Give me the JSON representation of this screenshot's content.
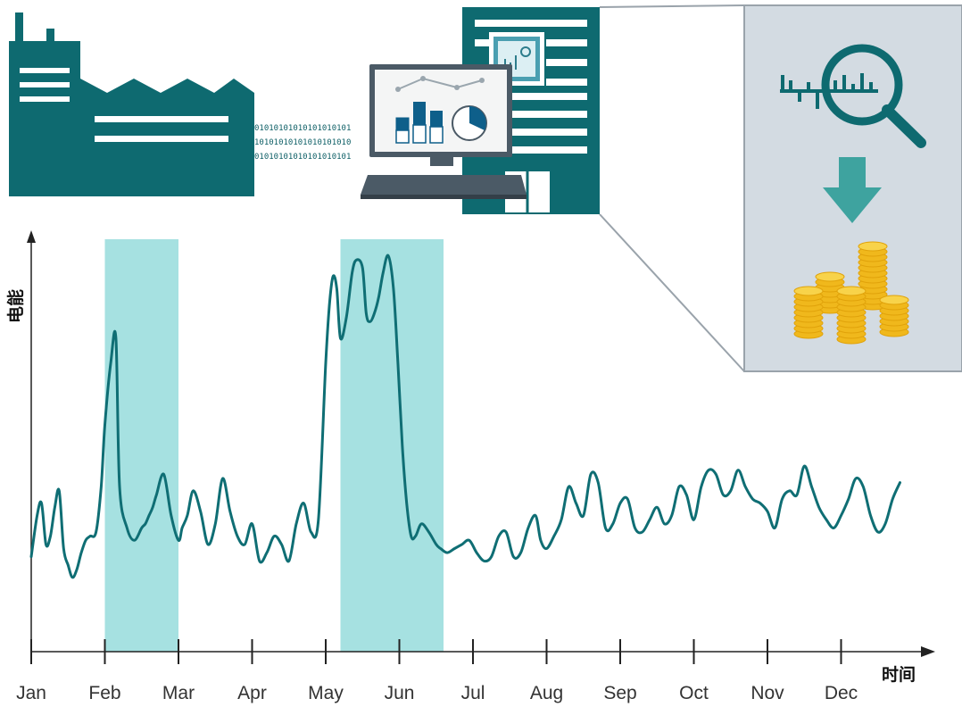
{
  "chart_data": {
    "type": "line",
    "title": "",
    "xlabel": "时间",
    "ylabel": "电能",
    "months": [
      "Jan",
      "Feb",
      "Mar",
      "Apr",
      "May",
      "Jun",
      "Jul",
      "Aug",
      "Sep",
      "Oct",
      "Nov",
      "Dec"
    ],
    "x_range": [
      0,
      12
    ],
    "ylim": [
      0,
      10
    ],
    "grid": false,
    "line_color": "#0f6e74",
    "highlight_color": "#a6e1e1",
    "highlight_ranges": [
      [
        1.0,
        2.0
      ],
      [
        4.2,
        5.6
      ]
    ],
    "series": [
      {
        "x": [
          0.0,
          0.08,
          0.14,
          0.2,
          0.26,
          0.32,
          0.38,
          0.44,
          0.5,
          0.56,
          0.62,
          0.68,
          0.74,
          0.8,
          0.88,
          0.95,
          1.0,
          1.08,
          1.15,
          1.2,
          1.3,
          1.4,
          1.5,
          1.55,
          1.6,
          1.65,
          1.7,
          1.8,
          1.9,
          2.0,
          2.05,
          2.12,
          2.2,
          2.3,
          2.4,
          2.5,
          2.6,
          2.7,
          2.8,
          2.9,
          3.0,
          3.1,
          3.2,
          3.3,
          3.4,
          3.5,
          3.6,
          3.7,
          3.8,
          3.9,
          4.0,
          4.05,
          4.1,
          4.15,
          4.2,
          4.28,
          4.36,
          4.42,
          4.5,
          4.55,
          4.6,
          4.66,
          4.72,
          4.78,
          4.85,
          4.92,
          4.98,
          5.04,
          5.1,
          5.16,
          5.22,
          5.3,
          5.4,
          5.5,
          5.56,
          5.65,
          5.75,
          5.85,
          5.95,
          6.05,
          6.15,
          6.25,
          6.35,
          6.45,
          6.55,
          6.65,
          6.75,
          6.85,
          6.92,
          7.0,
          7.1,
          7.2,
          7.3,
          7.4,
          7.5,
          7.6,
          7.7,
          7.8,
          7.9,
          8.0,
          8.1,
          8.2,
          8.3,
          8.4,
          8.5,
          8.6,
          8.7,
          8.8,
          8.9,
          9.0,
          9.1,
          9.2,
          9.3,
          9.4,
          9.5,
          9.6,
          9.7,
          9.8,
          9.9,
          10.0,
          10.1,
          10.2,
          10.3,
          10.4,
          10.5,
          10.6,
          10.7,
          10.8,
          10.9,
          11.0,
          11.1,
          11.2,
          11.3,
          11.4,
          11.5,
          11.6,
          11.7,
          11.8
        ],
        "y": [
          2.3,
          3.3,
          3.6,
          2.6,
          2.8,
          3.5,
          3.9,
          2.5,
          2.1,
          1.8,
          2.0,
          2.4,
          2.7,
          2.8,
          2.9,
          4.0,
          5.5,
          7.0,
          7.6,
          4.0,
          3.0,
          2.7,
          3.0,
          3.1,
          3.3,
          3.5,
          3.8,
          4.3,
          3.3,
          2.7,
          3.0,
          3.3,
          3.9,
          3.4,
          2.6,
          3.1,
          4.2,
          3.4,
          2.8,
          2.6,
          3.1,
          2.2,
          2.4,
          2.8,
          2.6,
          2.2,
          3.1,
          3.6,
          2.9,
          3.2,
          7.0,
          8.4,
          9.1,
          8.8,
          7.6,
          8.1,
          9.2,
          9.5,
          9.3,
          8.2,
          8.0,
          8.2,
          8.6,
          9.2,
          9.6,
          8.8,
          7.0,
          5.0,
          3.6,
          2.8,
          2.8,
          3.1,
          2.9,
          2.6,
          2.5,
          2.4,
          2.5,
          2.6,
          2.7,
          2.4,
          2.2,
          2.3,
          2.8,
          2.9,
          2.3,
          2.4,
          3.0,
          3.3,
          2.7,
          2.5,
          2.8,
          3.2,
          4.0,
          3.6,
          3.3,
          4.3,
          4.1,
          3.0,
          3.1,
          3.6,
          3.7,
          3.0,
          2.9,
          3.2,
          3.5,
          3.1,
          3.3,
          4.0,
          3.8,
          3.2,
          4.0,
          4.4,
          4.3,
          3.8,
          3.9,
          4.4,
          4.0,
          3.7,
          3.6,
          3.4,
          3.0,
          3.7,
          3.9,
          3.8,
          4.5,
          4.0,
          3.5,
          3.2,
          3.0,
          3.3,
          3.7,
          4.2,
          4.0,
          3.3,
          2.9,
          3.1,
          3.7,
          4.1
        ],
        "smooth": true
      }
    ]
  },
  "illustration": {
    "bits_rows": [
      "01010101010101010101",
      "10101010101010101010",
      "01010101010101010101"
    ],
    "colors": {
      "teal": "#0e6a70",
      "panel": "#d3dbe2",
      "coin": "#f3c230",
      "arrow": "#3ea39f"
    },
    "icons": [
      "factory-icon",
      "computer-icon",
      "document-icon",
      "analytics-magnifier-icon",
      "down-arrow-icon",
      "coins-icon"
    ]
  }
}
